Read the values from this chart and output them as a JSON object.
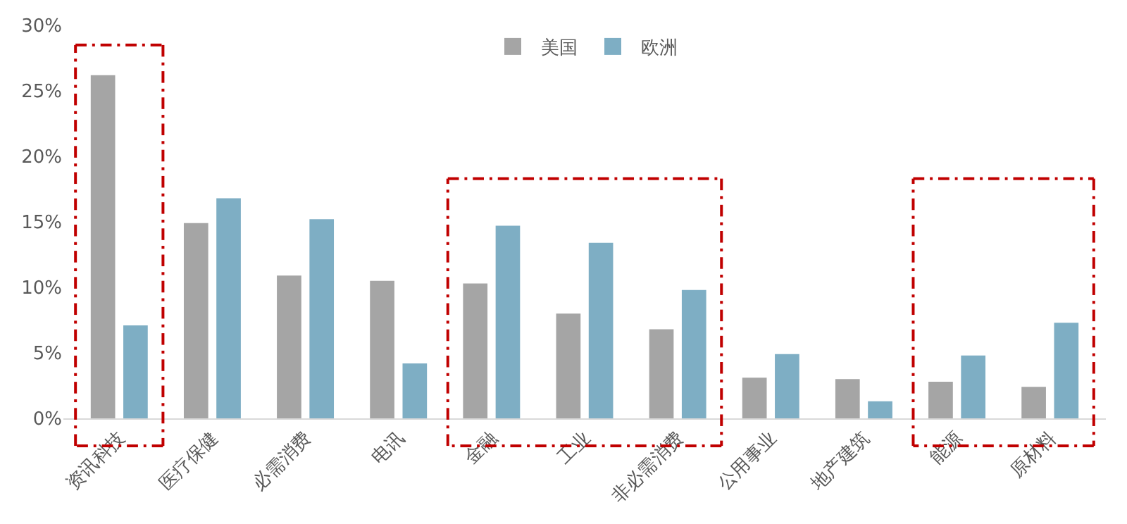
{
  "chart_data": {
    "type": "bar",
    "categories": [
      "资讯科技",
      "医疗保健",
      "必需消费",
      "电讯",
      "金融",
      "工业",
      "非必需消费",
      "公用事业",
      "地产建筑",
      "能源",
      "原材料"
    ],
    "series": [
      {
        "name": "美国",
        "color": "#a5a5a5",
        "values": [
          26.2,
          14.9,
          10.9,
          10.5,
          10.3,
          8.0,
          6.8,
          3.1,
          3.0,
          2.8,
          2.4
        ]
      },
      {
        "name": "欧洲",
        "color": "#7eaec4",
        "values": [
          7.1,
          16.8,
          15.2,
          4.2,
          14.7,
          13.4,
          9.8,
          4.9,
          1.3,
          4.8,
          7.3
        ]
      }
    ],
    "ylim": [
      0,
      30
    ],
    "yticks": [
      {
        "value": 0,
        "label": "0%"
      },
      {
        "value": 5,
        "label": "5%"
      },
      {
        "value": 10,
        "label": "10%"
      },
      {
        "value": 15,
        "label": "15%"
      },
      {
        "value": 20,
        "label": "20%"
      },
      {
        "value": 25,
        "label": "25%"
      },
      {
        "value": 30,
        "label": "30%"
      }
    ],
    "grid": false,
    "legend": "top"
  }
}
